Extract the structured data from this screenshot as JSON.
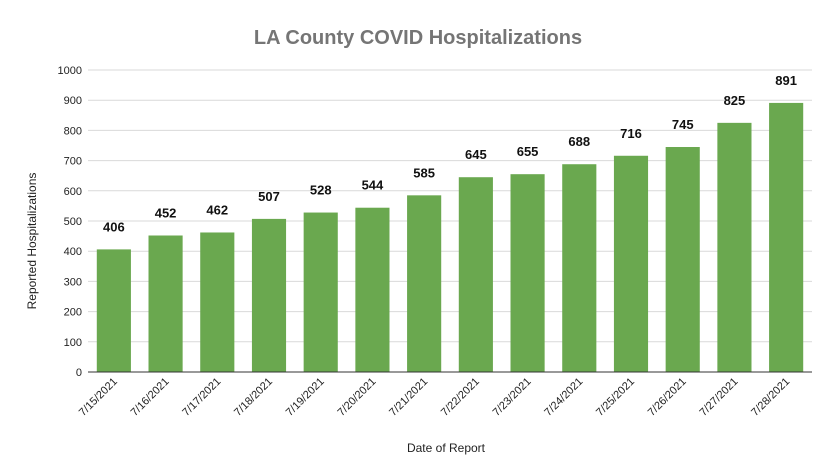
{
  "chart_data": {
    "type": "bar",
    "title": "LA County COVID Hospitalizations",
    "xlabel": "Date of Report",
    "ylabel": "Reported Hospitalizations",
    "categories": [
      "7/15/2021",
      "7/16/2021",
      "7/17/2021",
      "7/18/2021",
      "7/19/2021",
      "7/20/2021",
      "7/21/2021",
      "7/22/2021",
      "7/23/2021",
      "7/24/2021",
      "7/25/2021",
      "7/26/2021",
      "7/27/2021",
      "7/28/2021"
    ],
    "values": [
      406,
      452,
      462,
      507,
      528,
      544,
      585,
      645,
      655,
      688,
      716,
      745,
      825,
      891
    ],
    "ylim": [
      0,
      1000
    ],
    "yticks": [
      0,
      100,
      200,
      300,
      400,
      500,
      600,
      700,
      800,
      900,
      1000
    ],
    "grid": true,
    "legend": "none",
    "bar_color": "#6aa84f",
    "data_labels": true
  }
}
